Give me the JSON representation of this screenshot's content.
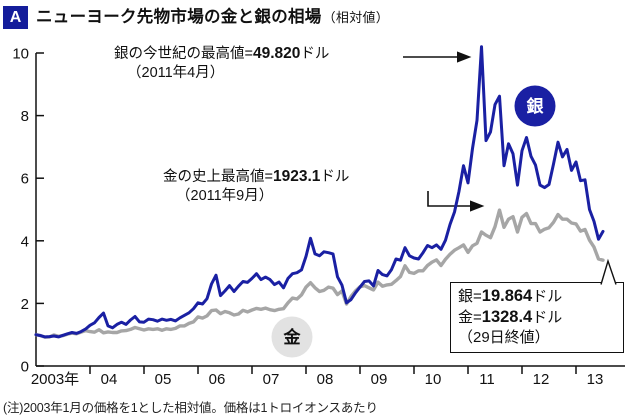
{
  "header": {
    "badge": "A",
    "title": "ニューヨーク先物市場の金と銀の相場",
    "suffix": "（相対値）"
  },
  "footnote": "(注)2003年1月の価格を1とした相対値。価格は1トロイオンスあたり",
  "chart_data": {
    "type": "line",
    "title": "ニューヨーク先物市場の金と銀の相場（相対値）",
    "xlabel": "",
    "ylabel": "",
    "ylim": [
      0,
      10
    ],
    "y_ticks": [
      0,
      2,
      4,
      6,
      8,
      10
    ],
    "grid": false,
    "x_start_year": 2003,
    "x_step": "month",
    "x_labels": [
      "2003年",
      "04",
      "05",
      "06",
      "07",
      "08",
      "09",
      "10",
      "11",
      "12",
      "13"
    ],
    "series": [
      {
        "name": "金",
        "name_en": "gold",
        "color": "#a6a6a6",
        "badge": {
          "bg": "#e2e2e2",
          "fg": "#111111"
        },
        "values": [
          1.0,
          0.97,
          0.92,
          0.93,
          0.99,
          0.95,
          0.97,
          1.02,
          1.05,
          1.03,
          1.08,
          1.13,
          1.1,
          1.08,
          1.16,
          1.06,
          1.09,
          1.07,
          1.07,
          1.12,
          1.13,
          1.17,
          1.23,
          1.19,
          1.15,
          1.19,
          1.17,
          1.19,
          1.14,
          1.19,
          1.17,
          1.2,
          1.28,
          1.28,
          1.36,
          1.41,
          1.57,
          1.53,
          1.6,
          1.77,
          1.79,
          1.67,
          1.74,
          1.7,
          1.63,
          1.66,
          1.78,
          1.73,
          1.79,
          1.84,
          1.81,
          1.85,
          1.8,
          1.77,
          1.81,
          1.83,
          2.02,
          2.17,
          2.14,
          2.27,
          2.52,
          2.66,
          2.5,
          2.38,
          2.42,
          2.52,
          2.49,
          2.28,
          2.4,
          1.98,
          2.22,
          2.4,
          2.53,
          2.57,
          2.5,
          2.43,
          2.68,
          2.55,
          2.59,
          2.61,
          2.73,
          2.86,
          3.2,
          2.99,
          2.96,
          3.04,
          3.04,
          3.21,
          3.32,
          3.39,
          3.21,
          3.41,
          3.57,
          3.7,
          3.78,
          3.87,
          3.63,
          3.84,
          3.92,
          4.28,
          4.18,
          4.1,
          4.45,
          4.98,
          4.43,
          4.69,
          4.77,
          4.28,
          4.75,
          4.87,
          4.55,
          4.55,
          4.28,
          4.37,
          4.42,
          4.59,
          4.84,
          4.69,
          4.69,
          4.57,
          4.54,
          4.31,
          4.36,
          4.02,
          3.8,
          3.42,
          3.38
        ]
      },
      {
        "name": "銀",
        "name_en": "silver",
        "color": "#1a20a3",
        "badge": {
          "bg": "#1a20a3",
          "fg": "#ffffff"
        },
        "values": [
          1.0,
          0.97,
          0.93,
          0.94,
          0.96,
          0.93,
          0.98,
          1.03,
          1.07,
          1.04,
          1.1,
          1.18,
          1.3,
          1.38,
          1.55,
          1.69,
          1.28,
          1.22,
          1.33,
          1.4,
          1.33,
          1.47,
          1.58,
          1.41,
          1.4,
          1.5,
          1.48,
          1.43,
          1.5,
          1.46,
          1.49,
          1.44,
          1.54,
          1.62,
          1.7,
          1.83,
          2.02,
          1.98,
          2.15,
          2.62,
          2.9,
          2.25,
          2.4,
          2.57,
          2.38,
          2.55,
          2.7,
          2.67,
          2.8,
          2.95,
          2.76,
          2.84,
          2.76,
          2.6,
          2.68,
          2.5,
          2.8,
          2.95,
          2.98,
          3.07,
          3.5,
          4.08,
          3.58,
          3.52,
          3.65,
          3.62,
          3.58,
          2.85,
          2.58,
          2.02,
          2.12,
          2.34,
          2.52,
          2.7,
          2.72,
          2.56,
          3.05,
          2.92,
          2.88,
          3.08,
          3.42,
          3.38,
          3.78,
          3.52,
          3.45,
          3.42,
          3.62,
          3.85,
          3.78,
          3.87,
          3.73,
          4.02,
          4.52,
          4.92,
          5.58,
          6.4,
          5.85,
          6.95,
          7.85,
          10.2,
          7.2,
          7.48,
          8.35,
          8.62,
          6.4,
          7.1,
          6.78,
          5.78,
          6.88,
          7.3,
          6.7,
          6.42,
          5.78,
          5.7,
          5.8,
          6.45,
          7.15,
          6.68,
          6.92,
          6.25,
          6.52,
          5.92,
          5.95,
          5.0,
          4.62,
          4.05,
          4.3
        ]
      }
    ],
    "annotations": {
      "silver_high": {
        "pre": "銀の今世紀の最高値=",
        "value": "49.820",
        "post": "ドル",
        "date": "（2011年4月）"
      },
      "gold_high": {
        "pre": "金の史上最高値=",
        "value": "1923.1",
        "post": "ドル",
        "date": "（2011年9月）"
      },
      "price_box": {
        "lines": [
          {
            "pre": "銀=",
            "value": "19.864",
            "post": "ドル"
          },
          {
            "pre": "金=",
            "value": "1328.4",
            "post": "ドル"
          }
        ],
        "note": "（29日終値）"
      }
    }
  }
}
